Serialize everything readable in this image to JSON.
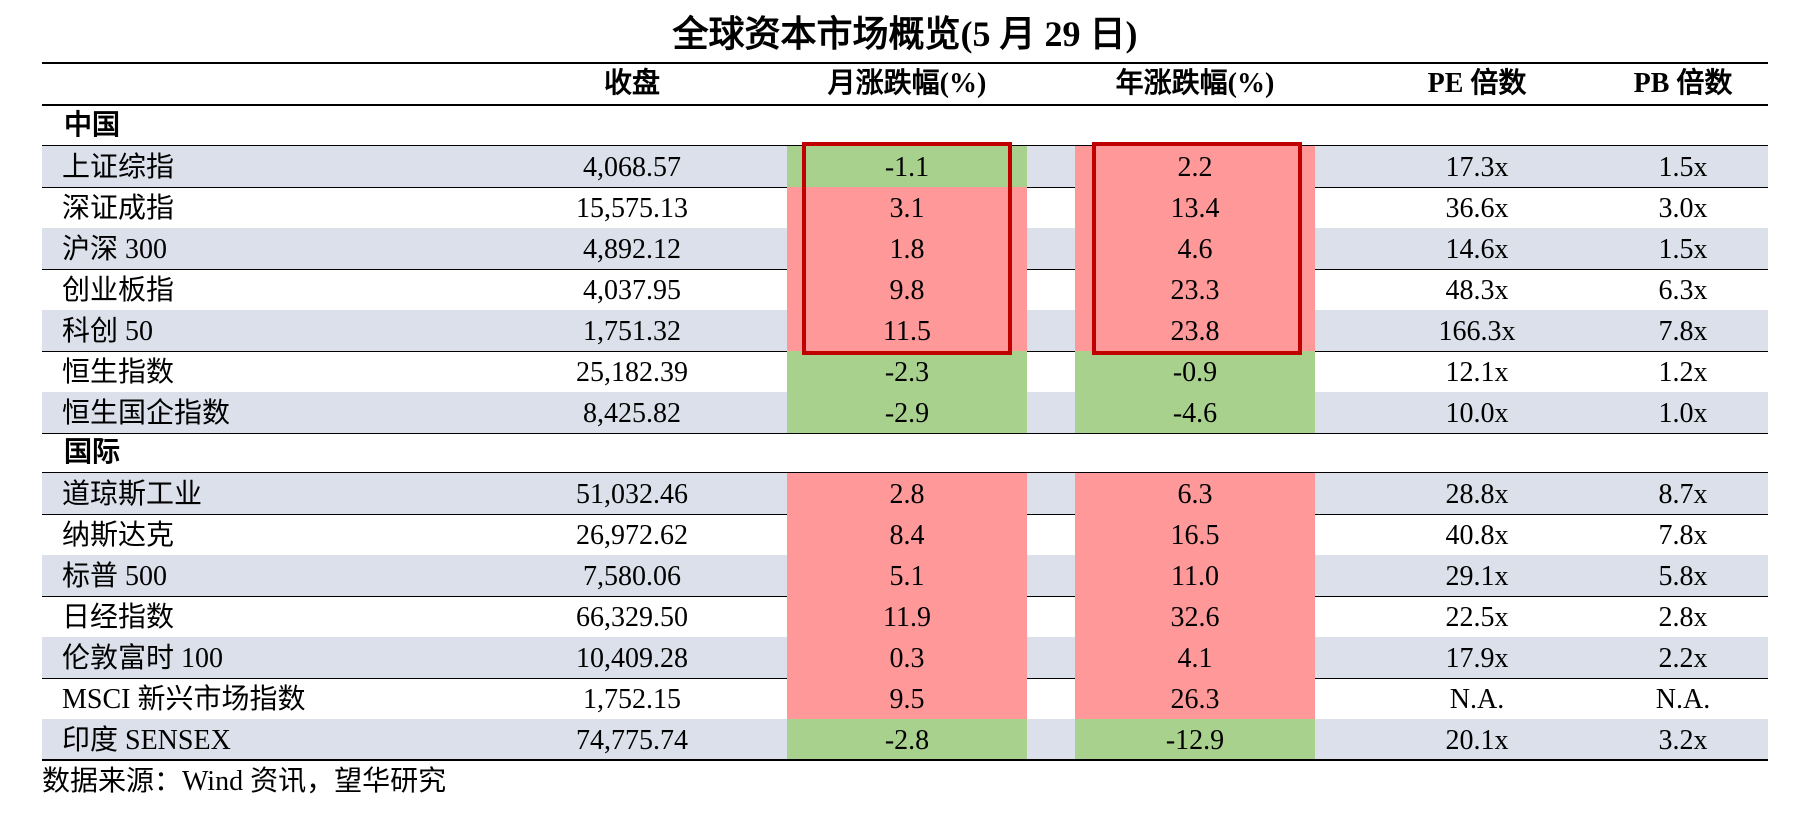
{
  "title": "全球资本市场概览(5 月 29 日)",
  "source": "数据来源：Wind 资讯，望华研究",
  "colors": {
    "up": "#ff9999",
    "down": "#a9d18e",
    "shade": "#dbe0ea",
    "box": "#c00000"
  },
  "chart_data": {
    "type": "table",
    "columns": [
      "",
      "收盘",
      "月涨跌幅(%)",
      "年涨跌幅(%)",
      "PE 倍数",
      "PB 倍数"
    ],
    "sections": [
      {
        "name": "中国",
        "rows": [
          {
            "name": "上证综指",
            "close": "4,068.57",
            "mtd": "-1.1",
            "ytd": "2.2",
            "pe": "17.3x",
            "pb": "1.5x"
          },
          {
            "name": "深证成指",
            "close": "15,575.13",
            "mtd": "3.1",
            "ytd": "13.4",
            "pe": "36.6x",
            "pb": "3.0x"
          },
          {
            "name": "沪深 300",
            "close": "4,892.12",
            "mtd": "1.8",
            "ytd": "4.6",
            "pe": "14.6x",
            "pb": "1.5x"
          },
          {
            "name": "创业板指",
            "close": "4,037.95",
            "mtd": "9.8",
            "ytd": "23.3",
            "pe": "48.3x",
            "pb": "6.3x"
          },
          {
            "name": "科创 50",
            "close": "1,751.32",
            "mtd": "11.5",
            "ytd": "23.8",
            "pe": "166.3x",
            "pb": "7.8x"
          },
          {
            "name": "恒生指数",
            "close": "25,182.39",
            "mtd": "-2.3",
            "ytd": "-0.9",
            "pe": "12.1x",
            "pb": "1.2x"
          },
          {
            "name": "恒生国企指数",
            "close": "8,425.82",
            "mtd": "-2.9",
            "ytd": "-4.6",
            "pe": "10.0x",
            "pb": "1.0x"
          }
        ]
      },
      {
        "name": "国际",
        "rows": [
          {
            "name": "道琼斯工业",
            "close": "51,032.46",
            "mtd": "2.8",
            "ytd": "6.3",
            "pe": "28.8x",
            "pb": "8.7x"
          },
          {
            "name": "纳斯达克",
            "close": "26,972.62",
            "mtd": "8.4",
            "ytd": "16.5",
            "pe": "40.8x",
            "pb": "7.8x"
          },
          {
            "name": "标普 500",
            "close": "7,580.06",
            "mtd": "5.1",
            "ytd": "11.0",
            "pe": "29.1x",
            "pb": "5.8x"
          },
          {
            "name": "日经指数",
            "close": "66,329.50",
            "mtd": "11.9",
            "ytd": "32.6",
            "pe": "22.5x",
            "pb": "2.8x"
          },
          {
            "name": "伦敦富时 100",
            "close": "10,409.28",
            "mtd": "0.3",
            "ytd": "4.1",
            "pe": "17.9x",
            "pb": "2.2x"
          },
          {
            "name": "MSCI 新兴市场指数",
            "close": "1,752.15",
            "mtd": "9.5",
            "ytd": "26.3",
            "pe": "N.A.",
            "pb": "N.A."
          },
          {
            "name": "印度 SENSEX",
            "close": "74,775.74",
            "mtd": "-2.8",
            "ytd": "-12.9",
            "pe": "20.1x",
            "pb": "3.2x"
          }
        ]
      }
    ],
    "highlighted_rows": {
      "section": "中国",
      "from": 0,
      "to": 4,
      "columns": [
        "月涨跌幅(%)",
        "年涨跌幅(%)"
      ]
    }
  }
}
